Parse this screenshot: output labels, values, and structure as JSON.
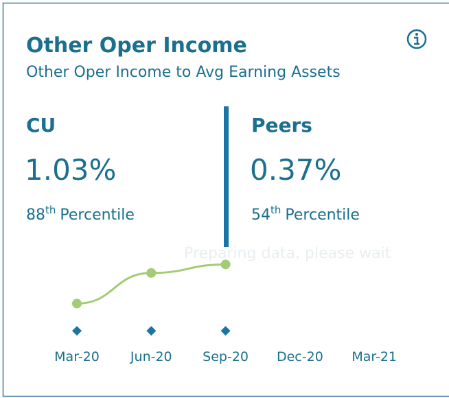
{
  "card": {
    "title": "Other Oper Income",
    "subtitle": "Other Oper Income to Avg Earning Assets",
    "cu": {
      "label": "CU",
      "value": "1.03%",
      "rank": "88",
      "rank_suffix": "th",
      "rank_text": "Percentile"
    },
    "peers": {
      "label": "Peers",
      "value": "0.37%",
      "rank": "54",
      "rank_suffix": "th",
      "rank_text": "Percentile"
    },
    "overlay": "Preparing data, please wait"
  },
  "chart_data": {
    "type": "line",
    "categories": [
      "Mar-20",
      "Jun-20",
      "Sep-20",
      "Dec-20",
      "Mar-21"
    ],
    "series": [
      {
        "name": "CU",
        "color": "#a3cc74",
        "values": [
          0.8,
          0.98,
          1.03,
          null,
          null
        ]
      },
      {
        "name": "Peers",
        "color": "#1a75a3",
        "axis": "y2",
        "values": [
          0.37,
          0.37,
          0.37,
          null,
          null
        ]
      }
    ],
    "ylim": [
      0.6,
      1.1
    ],
    "y2lim": [
      0.33,
      0.83
    ]
  }
}
